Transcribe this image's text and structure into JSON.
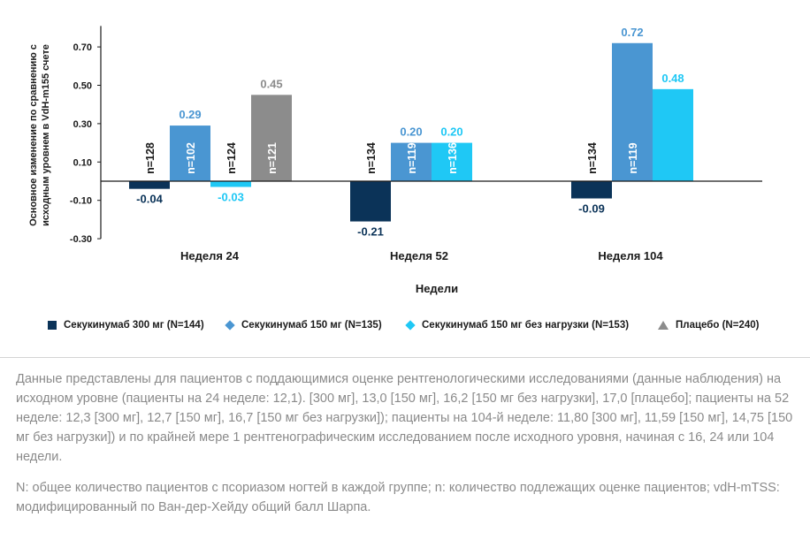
{
  "chart_data": {
    "type": "bar",
    "ylabel": "Основное изменение по сравнению с исходным уровнем в VdH-m155 счете",
    "xlabel": "Недели",
    "categories": [
      "Неделя 24",
      "Неделя 52",
      "Неделя 104"
    ],
    "ylim": [
      -0.3,
      0.8
    ],
    "yticks": [
      0.7,
      0.5,
      0.3,
      0.1,
      -0.1,
      -0.3
    ],
    "ytick_labels": [
      "0.70",
      "0.50",
      "0.30",
      "0.10",
      "-0.10",
      "-0.30"
    ],
    "legend_position": "bottom",
    "grid": false,
    "series": [
      {
        "name": "Секукинумаб 300 мг (N=144)",
        "color": "#0b3358",
        "marker": "square",
        "values": [
          -0.04,
          -0.21,
          -0.09
        ],
        "labels": [
          "-0.04",
          "-0.21",
          "-0.09"
        ],
        "n": [
          "n=128",
          "n=134",
          "n=134"
        ]
      },
      {
        "name": "Секукинумаб 150 мг (N=135)",
        "color": "#4a96d2",
        "marker": "diamond",
        "values": [
          0.29,
          0.2,
          0.72
        ],
        "labels": [
          "0.29",
          "0.20",
          "0.72"
        ],
        "n": [
          "n=102",
          "n=119",
          "n=119"
        ]
      },
      {
        "name": "Секукинумаб 150 мг без нагрузки (N=153)",
        "color": "#1fc8f5",
        "marker": "diamond",
        "values": [
          -0.03,
          0.2,
          0.48
        ],
        "labels": [
          "-0.03",
          "0.20",
          "0.48"
        ],
        "n": [
          "n=124",
          "n=136",
          null
        ]
      },
      {
        "name": "Плацебо (N=240)",
        "color": "#8c8c8c",
        "marker": "triangle",
        "values": [
          0.45,
          null,
          null
        ],
        "labels": [
          "0.45",
          null,
          null
        ],
        "n": [
          "n=121",
          null,
          null
        ]
      }
    ]
  },
  "footnotes": {
    "text1": "Данные представлены для пациентов с поддающимися оценке рентгенологическими исследованиями (данные наблюдения) на исходном уровне (пациенты на 24 неделе: 12,1). [300 мг], 13,0 [150 мг], 16,2 [150 мг без нагрузки], 17,0 [плацебо]; пациенты на 52 неделе: 12,3 [300 мг], 12,7 [150 мг], 16,7 [150 мг без нагрузки]); пациенты на 104-й неделе: 11,80 [300 мг], 11,59 [150 мг], 14,75 [150 мг без нагрузки]) и по крайней мере 1 рентгенографическим исследованием после исходного уровня, начиная с 16, 24 или 104 недели.",
    "text2": "N: общее количество пациентов с псориазом ногтей в каждой группе; n: количество подлежащих оценке пациентов; vdH-mTSS: модифицированный по Ван-дер-Хейду общий балл Шарпа."
  }
}
